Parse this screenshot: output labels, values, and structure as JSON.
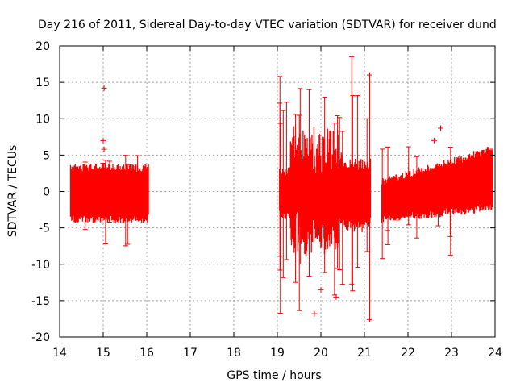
{
  "chart_data": {
    "type": "scatter",
    "title": "Day 216 of 2011, Sidereal Day-to-day VTEC variation (SDTVAR) for receiver dund",
    "xlabel": "GPS time / hours",
    "ylabel": "SDTVAR / TECUs",
    "xlim": [
      14,
      24
    ],
    "ylim": [
      -20,
      20
    ],
    "xticks": [
      14,
      15,
      16,
      17,
      18,
      19,
      20,
      21,
      22,
      23,
      24
    ],
    "yticks": [
      -20,
      -15,
      -10,
      -5,
      0,
      5,
      10,
      15,
      20
    ],
    "grid": true,
    "legend": "none",
    "color": "#ff0000",
    "marker": "+ with error bars",
    "segments": [
      {
        "name": "segment-1",
        "x_start": 14.25,
        "x_end": 16.05,
        "upper_typical": 3.0,
        "lower_typical": -3.5,
        "upper_extreme": 5.0,
        "lower_extreme": -7.5
      },
      {
        "name": "segment-2",
        "x_start": 19.05,
        "x_end": 21.15,
        "upper_typical": 8.0,
        "lower_typical": -8.0,
        "upper_extreme": 18.5,
        "lower_extreme": -16.8
      },
      {
        "name": "segment-3",
        "x_start": 21.4,
        "x_end": 23.95,
        "upper_typical": 3.0,
        "lower_typical": -4.0,
        "upper_extreme": 6.5,
        "lower_extreme": -10.0
      }
    ],
    "outliers": [
      {
        "x": 15.02,
        "y": 14.2
      },
      {
        "x": 15.0,
        "y": 7.0
      },
      {
        "x": 15.02,
        "y": 5.8
      },
      {
        "x": 19.85,
        "y": -16.8
      },
      {
        "x": 20.0,
        "y": -13.5
      },
      {
        "x": 20.35,
        "y": -14.5
      },
      {
        "x": 21.12,
        "y": 16.0
      },
      {
        "x": 21.12,
        "y": -17.6
      },
      {
        "x": 22.75,
        "y": 8.7
      },
      {
        "x": 22.6,
        "y": 7.0
      }
    ]
  }
}
